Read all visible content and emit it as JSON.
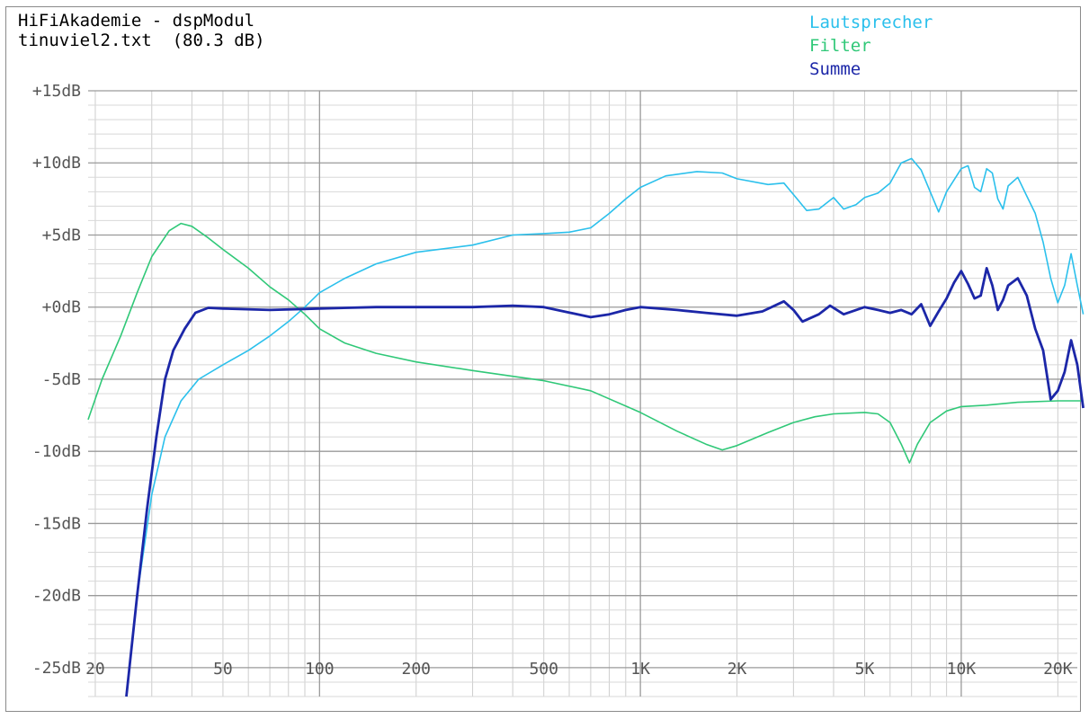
{
  "header": {
    "title": "HiFiAkademie - dspModul",
    "subtitle": "tinuviel2.txt  (80.3 dB)"
  },
  "chart_data": {
    "type": "line",
    "title": "HiFiAkademie - dspModul",
    "subtitle": "tinuviel2.txt  (80.3 dB)",
    "xscale": "log",
    "xlim": [
      19,
      23000
    ],
    "ylim": [
      -27,
      15
    ],
    "x_ticks": [
      {
        "value": 20,
        "label": "20"
      },
      {
        "value": 50,
        "label": "50"
      },
      {
        "value": 100,
        "label": "100"
      },
      {
        "value": 200,
        "label": "200"
      },
      {
        "value": 500,
        "label": "500"
      },
      {
        "value": 1000,
        "label": "1K"
      },
      {
        "value": 2000,
        "label": "2K"
      },
      {
        "value": 5000,
        "label": "5K"
      },
      {
        "value": 10000,
        "label": "10K"
      },
      {
        "value": 20000,
        "label": "20K"
      }
    ],
    "y_ticks": [
      {
        "value": 15,
        "label": "+15dB"
      },
      {
        "value": 10,
        "label": "+10dB"
      },
      {
        "value": 5,
        "label": "+5dB"
      },
      {
        "value": 0,
        "label": "+0dB"
      },
      {
        "value": -5,
        "label": "-5dB"
      },
      {
        "value": -10,
        "label": "-10dB"
      },
      {
        "value": -15,
        "label": "-15dB"
      },
      {
        "value": -20,
        "label": "-20dB"
      },
      {
        "value": -25,
        "label": "-25dB"
      }
    ],
    "grid": true,
    "legend_position": "top-right",
    "series": [
      {
        "name": "Lautsprecher",
        "color": "#2bc0ec",
        "points": [
          [
            25,
            -27
          ],
          [
            27,
            -20
          ],
          [
            30,
            -13
          ],
          [
            33,
            -9
          ],
          [
            37,
            -6.5
          ],
          [
            42,
            -5
          ],
          [
            50,
            -4
          ],
          [
            60,
            -3
          ],
          [
            70,
            -2
          ],
          [
            80,
            -1
          ],
          [
            90,
            0
          ],
          [
            100,
            1
          ],
          [
            120,
            2
          ],
          [
            150,
            3
          ],
          [
            200,
            3.8
          ],
          [
            300,
            4.3
          ],
          [
            400,
            5
          ],
          [
            500,
            5.1
          ],
          [
            600,
            5.2
          ],
          [
            700,
            5.5
          ],
          [
            800,
            6.5
          ],
          [
            900,
            7.5
          ],
          [
            1000,
            8.3
          ],
          [
            1200,
            9.1
          ],
          [
            1500,
            9.4
          ],
          [
            1800,
            9.3
          ],
          [
            2000,
            8.9
          ],
          [
            2500,
            8.5
          ],
          [
            2800,
            8.6
          ],
          [
            3000,
            7.8
          ],
          [
            3300,
            6.7
          ],
          [
            3600,
            6.8
          ],
          [
            4000,
            7.6
          ],
          [
            4300,
            6.8
          ],
          [
            4700,
            7.1
          ],
          [
            5000,
            7.6
          ],
          [
            5500,
            7.9
          ],
          [
            6000,
            8.6
          ],
          [
            6500,
            10.0
          ],
          [
            7000,
            10.3
          ],
          [
            7500,
            9.5
          ],
          [
            8000,
            8.0
          ],
          [
            8500,
            6.6
          ],
          [
            9000,
            8.0
          ],
          [
            10000,
            9.6
          ],
          [
            10500,
            9.8
          ],
          [
            11000,
            8.3
          ],
          [
            11500,
            8.0
          ],
          [
            12000,
            9.6
          ],
          [
            12500,
            9.3
          ],
          [
            13000,
            7.5
          ],
          [
            13500,
            6.8
          ],
          [
            14000,
            8.4
          ],
          [
            15000,
            9.0
          ],
          [
            16000,
            7.7
          ],
          [
            17000,
            6.5
          ],
          [
            18000,
            4.5
          ],
          [
            19000,
            2.0
          ],
          [
            20000,
            0.3
          ],
          [
            21000,
            1.5
          ],
          [
            22000,
            3.7
          ],
          [
            23000,
            1.5
          ],
          [
            24000,
            -0.5
          ]
        ]
      },
      {
        "name": "Filter",
        "color": "#30c878",
        "points": [
          [
            19,
            -7.8
          ],
          [
            21,
            -5
          ],
          [
            24,
            -2
          ],
          [
            27,
            1
          ],
          [
            30,
            3.5
          ],
          [
            34,
            5.3
          ],
          [
            37,
            5.8
          ],
          [
            40,
            5.6
          ],
          [
            45,
            4.8
          ],
          [
            50,
            4
          ],
          [
            60,
            2.7
          ],
          [
            70,
            1.4
          ],
          [
            80,
            0.5
          ],
          [
            90,
            -0.5
          ],
          [
            100,
            -1.5
          ],
          [
            120,
            -2.5
          ],
          [
            150,
            -3.2
          ],
          [
            200,
            -3.8
          ],
          [
            300,
            -4.4
          ],
          [
            400,
            -4.8
          ],
          [
            500,
            -5.1
          ],
          [
            700,
            -5.8
          ],
          [
            1000,
            -7.3
          ],
          [
            1300,
            -8.6
          ],
          [
            1600,
            -9.5
          ],
          [
            1800,
            -9.9
          ],
          [
            2000,
            -9.6
          ],
          [
            2500,
            -8.7
          ],
          [
            3000,
            -8.0
          ],
          [
            3500,
            -7.6
          ],
          [
            4000,
            -7.4
          ],
          [
            5000,
            -7.3
          ],
          [
            5500,
            -7.4
          ],
          [
            6000,
            -8.0
          ],
          [
            6500,
            -9.5
          ],
          [
            6900,
            -10.8
          ],
          [
            7300,
            -9.5
          ],
          [
            8000,
            -8.0
          ],
          [
            9000,
            -7.2
          ],
          [
            10000,
            -6.9
          ],
          [
            12000,
            -6.8
          ],
          [
            15000,
            -6.6
          ],
          [
            20000,
            -6.5
          ],
          [
            24000,
            -6.5
          ]
        ]
      },
      {
        "name": "Summe",
        "color": "#1c27a8",
        "points": [
          [
            25,
            -27
          ],
          [
            27,
            -20
          ],
          [
            29,
            -14
          ],
          [
            31,
            -9
          ],
          [
            33,
            -5
          ],
          [
            35,
            -3
          ],
          [
            38,
            -1.5
          ],
          [
            41,
            -0.4
          ],
          [
            45,
            -0.05
          ],
          [
            50,
            -0.1
          ],
          [
            70,
            -0.2
          ],
          [
            100,
            -0.1
          ],
          [
            150,
            0
          ],
          [
            200,
            0
          ],
          [
            300,
            0
          ],
          [
            400,
            0.1
          ],
          [
            500,
            0
          ],
          [
            700,
            -0.7
          ],
          [
            800,
            -0.5
          ],
          [
            900,
            -0.2
          ],
          [
            1000,
            0
          ],
          [
            1300,
            -0.2
          ],
          [
            1600,
            -0.4
          ],
          [
            2000,
            -0.6
          ],
          [
            2400,
            -0.3
          ],
          [
            2800,
            0.4
          ],
          [
            3000,
            -0.2
          ],
          [
            3200,
            -1.0
          ],
          [
            3600,
            -0.5
          ],
          [
            3900,
            0.1
          ],
          [
            4300,
            -0.5
          ],
          [
            5000,
            0
          ],
          [
            5500,
            -0.2
          ],
          [
            6000,
            -0.4
          ],
          [
            6500,
            -0.2
          ],
          [
            7000,
            -0.5
          ],
          [
            7500,
            0.2
          ],
          [
            8000,
            -1.3
          ],
          [
            8500,
            -0.3
          ],
          [
            9000,
            0.6
          ],
          [
            9500,
            1.7
          ],
          [
            10000,
            2.5
          ],
          [
            10500,
            1.6
          ],
          [
            11000,
            0.6
          ],
          [
            11500,
            0.8
          ],
          [
            12000,
            2.7
          ],
          [
            12500,
            1.5
          ],
          [
            13000,
            -0.2
          ],
          [
            13500,
            0.5
          ],
          [
            14000,
            1.5
          ],
          [
            15000,
            2.0
          ],
          [
            16000,
            0.8
          ],
          [
            17000,
            -1.5
          ],
          [
            18000,
            -3.0
          ],
          [
            19000,
            -6.4
          ],
          [
            20000,
            -5.8
          ],
          [
            21000,
            -4.5
          ],
          [
            22000,
            -2.3
          ],
          [
            23000,
            -4.0
          ],
          [
            24000,
            -7
          ]
        ]
      }
    ]
  }
}
